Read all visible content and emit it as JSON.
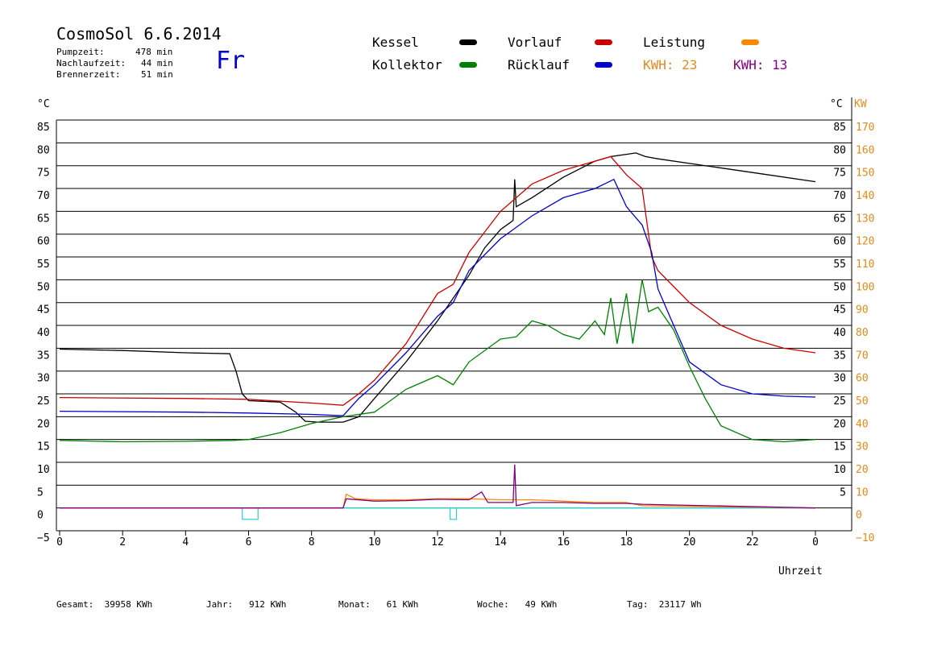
{
  "header": {
    "title": "CosmoSol 6.6.2014",
    "day": "Fr",
    "stats": [
      {
        "label": "Pumpzeit:",
        "value": "478 min"
      },
      {
        "label": "Nachlaufzeit:",
        "value": "44 min"
      },
      {
        "label": "Brennerzeit:",
        "value": "51 min"
      }
    ]
  },
  "legend": {
    "kessel": "Kessel",
    "kollektor": "Kollektor",
    "vorlauf": "Vorlauf",
    "ruecklauf": "Rücklauf",
    "leistung": "Leistung",
    "kwh1": "KWH: 23",
    "kwh2": "KWH: 13"
  },
  "colors": {
    "kessel": "#000000",
    "kollektor": "#008000",
    "vorlauf": "#cc0000",
    "ruecklauf": "#0000cc",
    "leistung": "#ff8800",
    "kwh1": "#e08a1e",
    "kwh2": "#800080",
    "baseline": "#33cccc"
  },
  "footer": {
    "gesamt": "Gesamt:  39958 KWh",
    "jahr": "Jahr:   912 KWh",
    "monat": "Monat:   61 KWh",
    "woche": "Woche:   49 KWh",
    "tag": "Tag:  23117 Wh"
  },
  "chart_data": {
    "type": "line",
    "xlabel": "Uhrzeit",
    "ylabel_left": "°C",
    "ylabel_right_temp": "°C",
    "ylabel_right_power": "KW",
    "xlim": [
      0,
      24
    ],
    "ylim": [
      -5,
      85
    ],
    "x_ticks": [
      "0",
      "2",
      "4",
      "6",
      "8",
      "10",
      "12",
      "14",
      "16",
      "18",
      "20",
      "22",
      "0"
    ],
    "y_ticks": [
      -5,
      0,
      5,
      10,
      15,
      20,
      25,
      30,
      35,
      40,
      45,
      50,
      55,
      60,
      65,
      70,
      75,
      80,
      85
    ],
    "right_temp_ticks": [
      5,
      10,
      15,
      20,
      25,
      30,
      35,
      40,
      45,
      50,
      55,
      60,
      65,
      70,
      75,
      80,
      85
    ],
    "right_power_ticks": [
      -10,
      0,
      10,
      20,
      30,
      40,
      50,
      60,
      70,
      80,
      90,
      100,
      110,
      120,
      130,
      140,
      150,
      160,
      170
    ],
    "grid": true,
    "series": [
      {
        "name": "Kessel",
        "color": "#000000",
        "points": [
          [
            0,
            34.8
          ],
          [
            2,
            34.5
          ],
          [
            4,
            34.0
          ],
          [
            5.4,
            33.8
          ],
          [
            5.6,
            30
          ],
          [
            5.8,
            25
          ],
          [
            6,
            23.5
          ],
          [
            7,
            23.2
          ],
          [
            7.5,
            21
          ],
          [
            7.8,
            19
          ],
          [
            8.2,
            18.8
          ],
          [
            9,
            18.8
          ],
          [
            9.5,
            20
          ],
          [
            10,
            24
          ],
          [
            11,
            32
          ],
          [
            12,
            41
          ],
          [
            13,
            51
          ],
          [
            13.5,
            57
          ],
          [
            14,
            61
          ],
          [
            14.4,
            63
          ],
          [
            14.45,
            72
          ],
          [
            14.5,
            66
          ],
          [
            15,
            68
          ],
          [
            16,
            72.5
          ],
          [
            17,
            76
          ],
          [
            17.5,
            77
          ],
          [
            18,
            77.5
          ],
          [
            18.3,
            77.8
          ],
          [
            18.6,
            77
          ],
          [
            19,
            76.5
          ],
          [
            20,
            75.5
          ],
          [
            22,
            73.5
          ],
          [
            24,
            71.5
          ]
        ]
      },
      {
        "name": "Kollektor",
        "color": "#008000",
        "points": [
          [
            0,
            14.8
          ],
          [
            2,
            14.5
          ],
          [
            4,
            14.6
          ],
          [
            5.5,
            14.8
          ],
          [
            6,
            15
          ],
          [
            7,
            16.5
          ],
          [
            8,
            18.5
          ],
          [
            9,
            20
          ],
          [
            10,
            21
          ],
          [
            11,
            26
          ],
          [
            12,
            29
          ],
          [
            12.5,
            27
          ],
          [
            13,
            32
          ],
          [
            14,
            37
          ],
          [
            14.5,
            37.5
          ],
          [
            15,
            41
          ],
          [
            15.5,
            40
          ],
          [
            16,
            38
          ],
          [
            16.5,
            37
          ],
          [
            17,
            41
          ],
          [
            17.3,
            38
          ],
          [
            17.5,
            46
          ],
          [
            17.7,
            36
          ],
          [
            18,
            47
          ],
          [
            18.2,
            36
          ],
          [
            18.5,
            50
          ],
          [
            18.7,
            43
          ],
          [
            19,
            44
          ],
          [
            19.5,
            39
          ],
          [
            20,
            31
          ],
          [
            20.5,
            24
          ],
          [
            21,
            18
          ],
          [
            22,
            15
          ],
          [
            23,
            14.5
          ],
          [
            24,
            15
          ]
        ]
      },
      {
        "name": "Vorlauf",
        "color": "#cc0000",
        "points": [
          [
            0,
            24.2
          ],
          [
            4,
            24
          ],
          [
            6,
            23.8
          ],
          [
            8,
            23
          ],
          [
            9,
            22.5
          ],
          [
            9.5,
            25
          ],
          [
            10,
            28
          ],
          [
            11,
            36
          ],
          [
            12,
            47
          ],
          [
            12.5,
            49
          ],
          [
            13,
            56
          ],
          [
            14,
            65
          ],
          [
            15,
            71
          ],
          [
            16,
            74
          ],
          [
            17,
            76
          ],
          [
            17.5,
            77
          ],
          [
            18,
            73
          ],
          [
            18.5,
            70
          ],
          [
            18.8,
            55
          ],
          [
            19,
            52
          ],
          [
            20,
            45
          ],
          [
            21,
            40
          ],
          [
            22,
            37
          ],
          [
            23,
            35
          ],
          [
            24,
            34
          ]
        ]
      },
      {
        "name": "Rücklauf",
        "color": "#0000cc",
        "points": [
          [
            0,
            21.2
          ],
          [
            4,
            21
          ],
          [
            6,
            20.8
          ],
          [
            8,
            20.5
          ],
          [
            9,
            20.2
          ],
          [
            9.5,
            24
          ],
          [
            10,
            27
          ],
          [
            11,
            34
          ],
          [
            12,
            42
          ],
          [
            12.5,
            45
          ],
          [
            13,
            52
          ],
          [
            14,
            59
          ],
          [
            15,
            64
          ],
          [
            16,
            68
          ],
          [
            17,
            70
          ],
          [
            17.3,
            71
          ],
          [
            17.6,
            72
          ],
          [
            18,
            66
          ],
          [
            18.5,
            62
          ],
          [
            18.8,
            56
          ],
          [
            19,
            48
          ],
          [
            19.5,
            40
          ],
          [
            20,
            32
          ],
          [
            21,
            27
          ],
          [
            22,
            25
          ],
          [
            23,
            24.5
          ],
          [
            24,
            24.3
          ]
        ]
      },
      {
        "name": "Leistung",
        "color": "#ff8800",
        "points": [
          [
            0,
            0
          ],
          [
            9,
            0
          ],
          [
            9.1,
            3
          ],
          [
            9.4,
            2
          ],
          [
            10,
            1.8
          ],
          [
            11,
            1.8
          ],
          [
            12,
            2
          ],
          [
            13,
            2
          ],
          [
            14,
            1.8
          ],
          [
            15,
            1.8
          ],
          [
            16,
            1.5
          ],
          [
            17,
            1.2
          ],
          [
            17.5,
            1.2
          ],
          [
            18,
            1.2
          ],
          [
            18.5,
            0.5
          ],
          [
            24,
            0
          ]
        ]
      },
      {
        "name": "KWH",
        "color": "#800080",
        "points": [
          [
            0,
            0
          ],
          [
            9,
            0
          ],
          [
            9.1,
            2
          ],
          [
            10,
            1.5
          ],
          [
            11,
            1.6
          ],
          [
            12,
            1.9
          ],
          [
            13,
            1.8
          ],
          [
            13.4,
            3.5
          ],
          [
            13.6,
            1.2
          ],
          [
            14.4,
            1.2
          ],
          [
            14.45,
            9.5
          ],
          [
            14.5,
            0.5
          ],
          [
            15,
            1.2
          ],
          [
            16,
            1.2
          ],
          [
            17,
            1
          ],
          [
            18,
            1
          ],
          [
            18.5,
            0.8
          ],
          [
            24,
            0
          ]
        ]
      }
    ]
  }
}
